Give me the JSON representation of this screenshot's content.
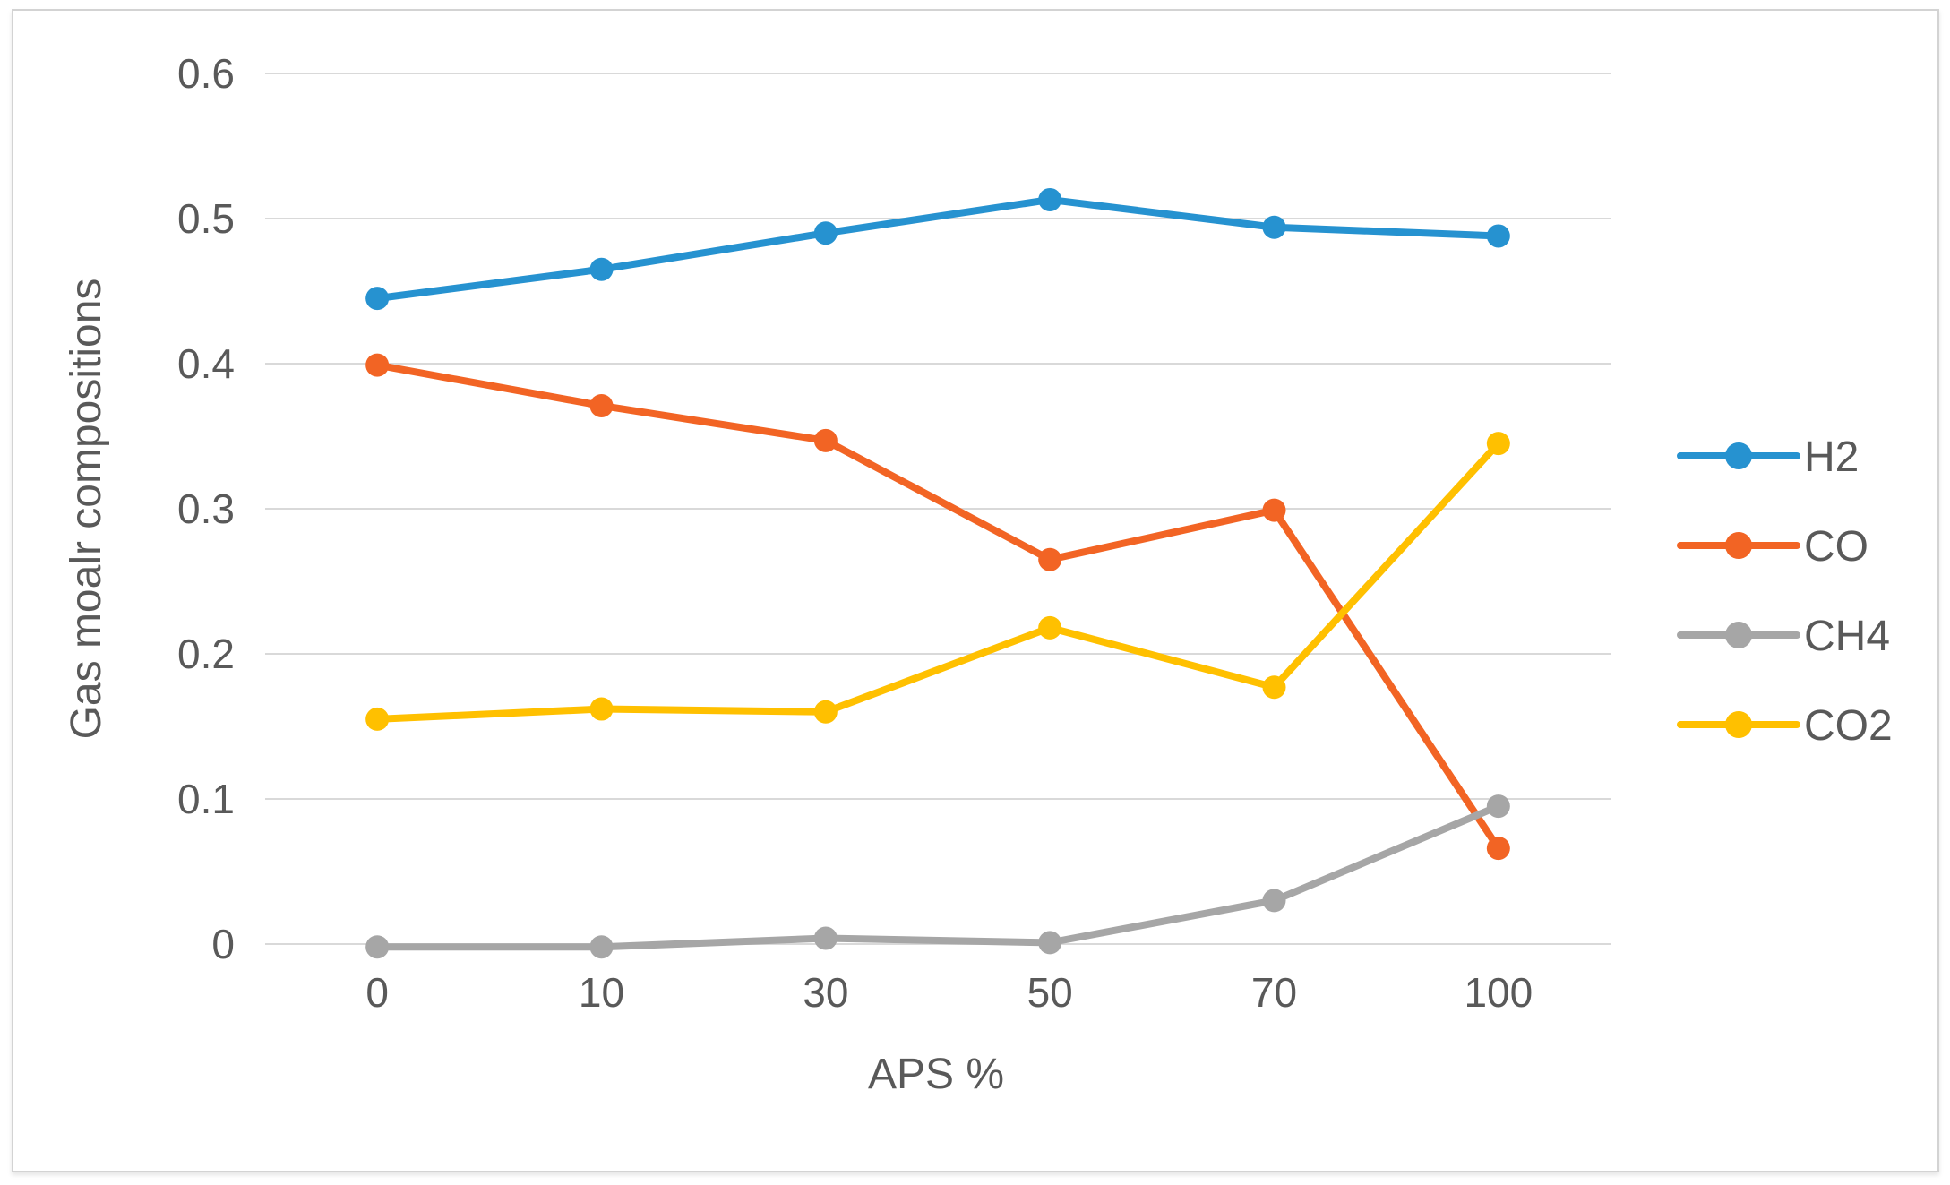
{
  "figure": {
    "background": "#ffffff",
    "border_color": "#d3d3d3"
  },
  "chart_data": {
    "type": "line",
    "title": "",
    "xlabel": "APS %",
    "ylabel": "Gas moalr compositions",
    "x_categories": [
      "0",
      "10",
      "30",
      "50",
      "70",
      "100"
    ],
    "y_ticks": [
      "0",
      "0.1",
      "0.2",
      "0.3",
      "0.4",
      "0.5",
      "0.6"
    ],
    "ylim": [
      0,
      0.6
    ],
    "grid": "horizontal",
    "legend_position": "right",
    "marker_style": "filled-circle",
    "colors": {
      "grid": "#d9d9d9",
      "text": "#595959"
    },
    "series": [
      {
        "name": "H2",
        "color": "#2692d0",
        "values": [
          0.445,
          0.465,
          0.49,
          0.513,
          0.494,
          0.488
        ]
      },
      {
        "name": "CO",
        "color": "#f26424",
        "values": [
          0.399,
          0.371,
          0.347,
          0.265,
          0.299,
          0.066
        ]
      },
      {
        "name": "CH4",
        "color": "#a6a6a6",
        "values": [
          -0.002,
          -0.002,
          0.004,
          0.001,
          0.03,
          0.095
        ]
      },
      {
        "name": "CO2",
        "color": "#ffc000",
        "values": [
          0.155,
          0.162,
          0.16,
          0.218,
          0.177,
          0.345
        ]
      }
    ]
  }
}
